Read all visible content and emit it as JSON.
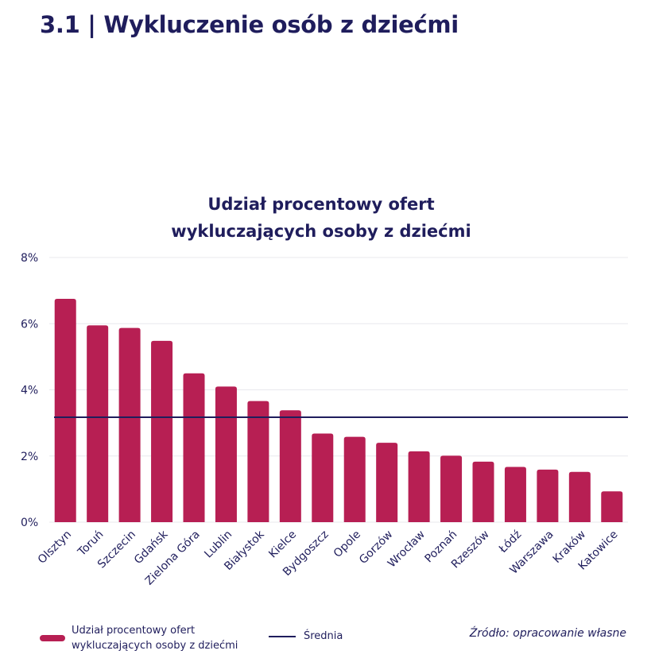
{
  "page": {
    "title": "3.1 | Wykluczenie osób z dziećmi",
    "source": "Źródło: opracowanie własne"
  },
  "colors": {
    "bar": "#b71f53",
    "average_line": "#1f1d5c",
    "text": "#1f1d5c",
    "grid": "#e8e8ee"
  },
  "legend": {
    "bar_line1": "Udział procentowy ofert",
    "bar_line2": "wykluczających osoby z dziećmi",
    "average": "Średnia"
  },
  "chart_data": {
    "type": "bar",
    "title_line1": "Udział procentowy ofert",
    "title_line2": "wykluczających osoby z dziećmi",
    "categories": [
      "Olsztyn",
      "Toruń",
      "Szczecin",
      "Gdańsk",
      "Zielona Góra",
      "Lublin",
      "Białystok",
      "Kielce",
      "Bydgoszcz",
      "Opole",
      "Gorzów",
      "Wrocław",
      "Poznań",
      "Rzeszów",
      "Łódź",
      "Warszawa",
      "Kraków",
      "Katowice"
    ],
    "series": [
      {
        "name": "Udział procentowy ofert wykluczających osoby z dziećmi",
        "values": [
          6.75,
          5.95,
          5.87,
          5.48,
          4.5,
          4.1,
          3.66,
          3.38,
          2.68,
          2.58,
          2.4,
          2.14,
          2.01,
          1.83,
          1.67,
          1.59,
          1.52,
          0.93
        ]
      },
      {
        "name": "Średnia",
        "type": "line",
        "value": 3.17
      }
    ],
    "yticks": [
      "0%",
      "2%",
      "4%",
      "6%",
      "8%"
    ],
    "ylim": [
      0,
      8
    ],
    "xlabel": "",
    "ylabel": "",
    "grid": true,
    "legend_position": "bottom"
  }
}
